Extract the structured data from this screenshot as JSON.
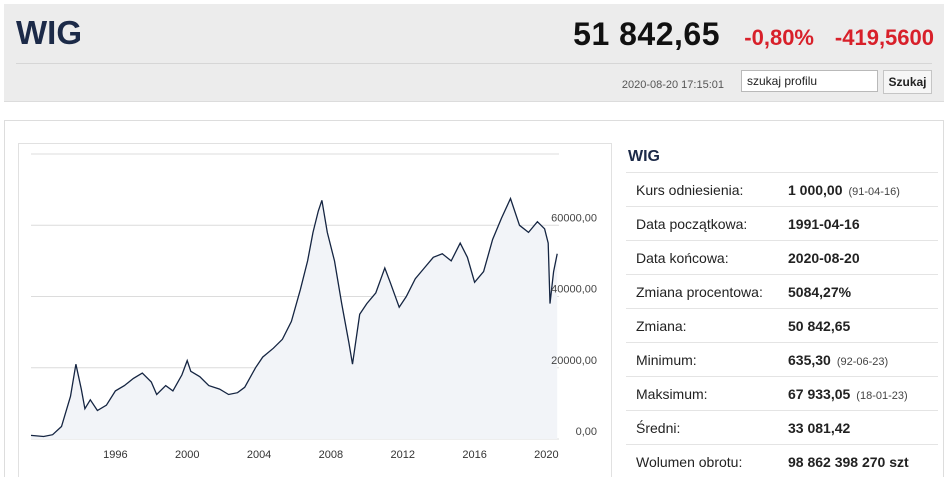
{
  "header": {
    "index_name": "WIG",
    "value": "51 842,65",
    "change_pct": "-0,80%",
    "change_abs": "-419,5600",
    "timestamp": "2020-08-20 17:15:01",
    "search_value": "szukaj profilu",
    "search_button": "Szukaj"
  },
  "colors": {
    "accent": "#1c2a48",
    "negative": "#d8202a",
    "line": "#152542",
    "area": "#f2f4f8"
  },
  "info": {
    "title": "WIG",
    "rows": [
      {
        "label": "Kurs odniesienia:",
        "value": "1 000,00",
        "date": "(91-04-16)"
      },
      {
        "label": "Data początkowa:",
        "value": "1991-04-16",
        "date": ""
      },
      {
        "label": "Data końcowa:",
        "value": "2020-08-20",
        "date": ""
      },
      {
        "label": "Zmiana procentowa:",
        "value": "5084,27%",
        "date": ""
      },
      {
        "label": "Zmiana:",
        "value": "50 842,65",
        "date": ""
      },
      {
        "label": "Minimum:",
        "value": "635,30",
        "date": "(92-06-23)"
      },
      {
        "label": "Maksimum:",
        "value": "67 933,05",
        "date": "(18-01-23)"
      },
      {
        "label": "Średni:",
        "value": "33 081,42",
        "date": ""
      },
      {
        "label": "Wolumen obrotu:",
        "value": "98 862 398 270 szt",
        "date": ""
      }
    ]
  },
  "chart_data": {
    "type": "area",
    "y_tick_labels": [
      "0,00",
      "20000,00",
      "40000,00",
      "60000,00"
    ],
    "y_ticks": [
      0,
      20000,
      40000,
      60000
    ],
    "x_tick_labels": [
      "1996",
      "2000",
      "2004",
      "2008",
      "2012",
      "2016",
      "2020"
    ],
    "x_ticks": [
      1996,
      2000,
      2004,
      2008,
      2012,
      2016,
      2020
    ],
    "xlim": [
      1991.3,
      2020.7
    ],
    "ylim": [
      0,
      80000
    ],
    "grid": true,
    "series": [
      {
        "x": [
          1991.3,
          1992.0,
          1992.5,
          1993.0,
          1993.5,
          1993.8,
          1994.1,
          1994.3,
          1994.6,
          1995.0,
          1995.5,
          1996.0,
          1996.5,
          1997.0,
          1997.5,
          1998.0,
          1998.3,
          1998.8,
          1999.2,
          1999.7,
          2000.0,
          2000.2,
          2000.7,
          2001.2,
          2001.8,
          2002.3,
          2002.8,
          2003.2,
          2003.8,
          2004.2,
          2004.8,
          2005.3,
          2005.8,
          2006.3,
          2006.7,
          2007.0,
          2007.3,
          2007.5,
          2007.8,
          2008.2,
          2008.6,
          2009.0,
          2009.2,
          2009.6,
          2010.0,
          2010.5,
          2011.0,
          2011.3,
          2011.8,
          2012.2,
          2012.7,
          2013.2,
          2013.7,
          2014.2,
          2014.7,
          2015.2,
          2015.6,
          2016.0,
          2016.5,
          2017.0,
          2017.5,
          2018.0,
          2018.5,
          2019.0,
          2019.5,
          2019.9,
          2020.1,
          2020.2,
          2020.4,
          2020.6
        ],
        "y": [
          1000,
          700,
          1200,
          3500,
          12000,
          21000,
          14000,
          8500,
          11000,
          8000,
          9500,
          13500,
          15000,
          17000,
          18500,
          16000,
          12500,
          15000,
          13500,
          18000,
          22000,
          19000,
          17500,
          15000,
          14000,
          12500,
          13000,
          14500,
          20000,
          23000,
          25500,
          28000,
          33000,
          42000,
          50000,
          58000,
          64000,
          67000,
          58000,
          50000,
          38000,
          27000,
          21000,
          35000,
          38000,
          41000,
          48000,
          44000,
          37000,
          40000,
          45000,
          48000,
          51000,
          52000,
          50000,
          55000,
          51000,
          44000,
          47000,
          56000,
          62000,
          67500,
          60000,
          58000,
          61000,
          59000,
          55000,
          38000,
          47000,
          52000
        ]
      }
    ]
  }
}
